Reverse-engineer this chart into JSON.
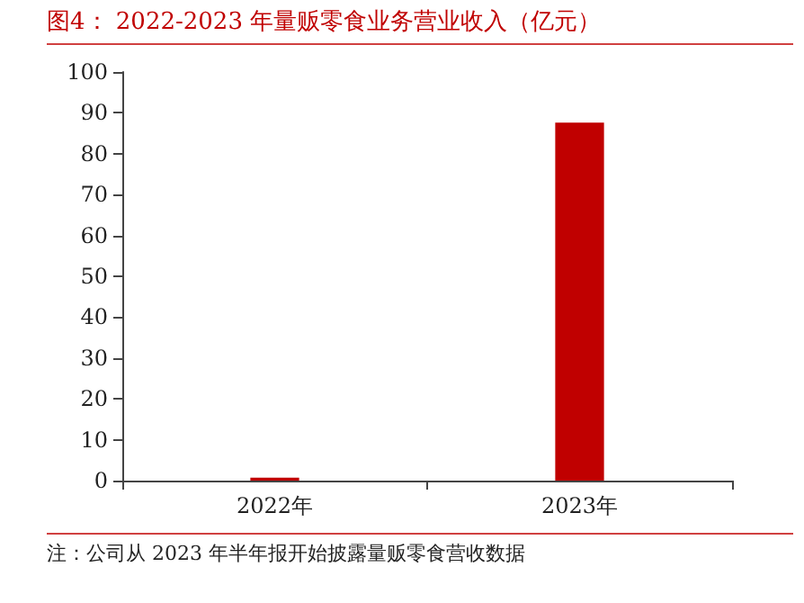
{
  "chart_data": {
    "type": "bar",
    "title": "图4：  2022-2023 年量贩零食业务营业收入（亿元）",
    "categories": [
      "2022年",
      "2023年"
    ],
    "values": [
      0.7,
      87.6
    ],
    "color": "#c00000",
    "ylim": [
      0,
      100
    ],
    "yticks": [
      0,
      10,
      20,
      30,
      40,
      50,
      60,
      70,
      80,
      90,
      100
    ],
    "grid": false,
    "annotations": [
      "注：公司从 2023 年半年报开始披露量贩零食营收数据"
    ]
  }
}
